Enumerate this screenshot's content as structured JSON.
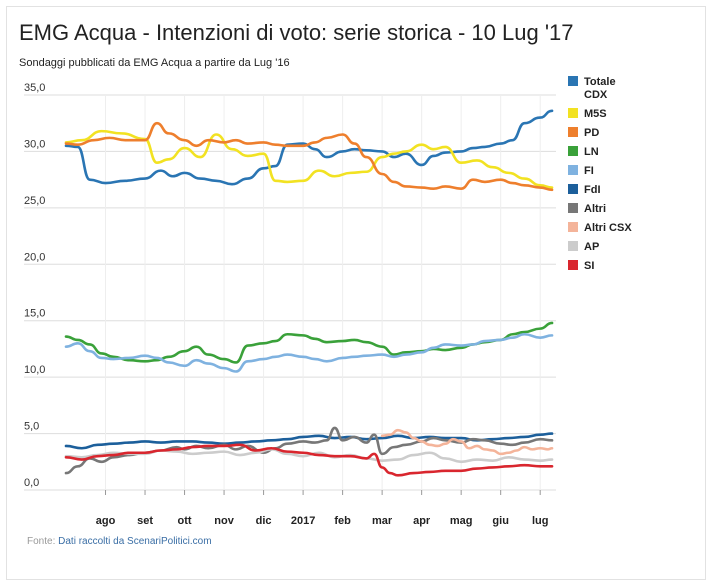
{
  "chart_data": {
    "type": "line",
    "title": "EMG Acqua - Intenzioni di voto: serie storica - 10 Lug '17",
    "subtitle": "Sondaggi pubblicati da EMG Acqua a partire da Lug '16",
    "source_prefix": "Fonte: ",
    "source_link": "Dati raccolti da ScenariPolitici.com",
    "ylim": [
      0,
      35
    ],
    "yticks": [
      "0,0",
      "5,0",
      "10,0",
      "15,0",
      "20,0",
      "25,0",
      "30,0",
      "35,0"
    ],
    "ytick_values": [
      0,
      5,
      10,
      15,
      20,
      25,
      30,
      35
    ],
    "xlim": [
      0,
      12.4
    ],
    "x_ticks": [
      {
        "label": "ago",
        "x": 1.0
      },
      {
        "label": "set",
        "x": 2.0
      },
      {
        "label": "ott",
        "x": 3.0
      },
      {
        "label": "nov",
        "x": 4.0
      },
      {
        "label": "dic",
        "x": 5.0
      },
      {
        "label": "2017",
        "x": 6.0
      },
      {
        "label": "feb",
        "x": 7.0
      },
      {
        "label": "mar",
        "x": 8.0
      },
      {
        "label": "apr",
        "x": 9.0
      },
      {
        "label": "mag",
        "x": 10.0
      },
      {
        "label": "giu",
        "x": 11.0
      },
      {
        "label": "lug",
        "x": 12.0
      }
    ],
    "grid": true,
    "legend_position": "right",
    "series": [
      {
        "name": "Totale CDX",
        "color": "#2a75b3",
        "x": [
          0,
          0.3,
          0.6,
          1.0,
          1.5,
          2.0,
          2.4,
          2.7,
          3.0,
          3.4,
          3.8,
          4.2,
          4.6,
          5.0,
          5.3,
          5.6,
          6.0,
          6.3,
          6.6,
          7.0,
          7.3,
          7.6,
          8.0,
          8.3,
          8.6,
          9.0,
          9.3,
          9.6,
          10.0,
          10.3,
          10.6,
          11.0,
          11.3,
          11.6,
          12.0,
          12.3
        ],
        "values": [
          30.5,
          30.4,
          27.5,
          27.2,
          27.4,
          27.6,
          28.3,
          27.8,
          28.1,
          27.6,
          27.4,
          27.1,
          27.6,
          28.5,
          28.7,
          30.6,
          30.7,
          30.2,
          29.5,
          30.0,
          30.2,
          30.1,
          30.0,
          29.5,
          29.8,
          28.8,
          29.6,
          29.9,
          30.0,
          30.3,
          30.4,
          30.7,
          31.0,
          32.5,
          33.0,
          33.6
        ]
      },
      {
        "name": "M5S",
        "color": "#f2e222",
        "x": [
          0,
          0.4,
          0.9,
          1.4,
          2.0,
          2.3,
          2.6,
          3.0,
          3.4,
          3.8,
          4.2,
          4.6,
          5.0,
          5.3,
          5.6,
          6.0,
          6.4,
          6.8,
          7.2,
          7.6,
          8.0,
          8.3,
          8.6,
          9.0,
          9.3,
          9.6,
          10.0,
          10.4,
          10.8,
          11.2,
          11.6,
          12.0,
          12.3
        ],
        "values": [
          30.8,
          31.0,
          31.8,
          31.6,
          31.1,
          29.0,
          29.3,
          30.3,
          29.5,
          31.5,
          30.2,
          29.6,
          29.8,
          27.4,
          27.3,
          27.4,
          28.3,
          27.8,
          28.1,
          28.2,
          29.5,
          29.8,
          30.0,
          30.6,
          30.2,
          30.4,
          29.0,
          29.2,
          28.6,
          28.1,
          27.6,
          27.0,
          26.8
        ]
      },
      {
        "name": "PD",
        "color": "#ee7f2d",
        "x": [
          0,
          0.3,
          0.7,
          1.1,
          1.5,
          2.0,
          2.3,
          2.6,
          3.0,
          3.3,
          3.6,
          4.0,
          4.3,
          4.6,
          5.0,
          5.3,
          5.6,
          6.0,
          6.3,
          6.6,
          7.0,
          7.3,
          7.6,
          8.0,
          8.3,
          8.6,
          9.0,
          9.3,
          9.6,
          10.0,
          10.3,
          10.6,
          11.0,
          11.3,
          11.6,
          12.0,
          12.3
        ],
        "values": [
          30.7,
          30.6,
          31.0,
          31.2,
          31.0,
          31.0,
          32.5,
          31.6,
          31.0,
          30.5,
          31.0,
          30.8,
          31.0,
          30.7,
          30.8,
          30.6,
          30.5,
          30.5,
          30.8,
          31.2,
          31.5,
          30.7,
          29.5,
          28.0,
          27.3,
          26.9,
          26.8,
          26.7,
          26.9,
          26.7,
          27.5,
          27.3,
          27.5,
          27.2,
          27.0,
          26.8,
          26.6
        ]
      },
      {
        "name": "LN",
        "color": "#3aa13a",
        "x": [
          0,
          0.3,
          0.6,
          0.9,
          1.2,
          1.6,
          2.0,
          2.3,
          2.6,
          3.0,
          3.3,
          3.6,
          4.0,
          4.3,
          4.6,
          5.0,
          5.3,
          5.6,
          6.0,
          6.3,
          6.6,
          7.0,
          7.3,
          7.6,
          8.0,
          8.3,
          8.6,
          9.0,
          9.3,
          9.6,
          10.0,
          10.3,
          10.6,
          11.0,
          11.3,
          11.6,
          12.0,
          12.3
        ],
        "values": [
          13.6,
          13.3,
          12.9,
          12.1,
          11.8,
          11.5,
          11.4,
          11.5,
          11.8,
          12.3,
          12.7,
          12.0,
          11.6,
          11.3,
          12.8,
          13.0,
          13.2,
          13.8,
          13.7,
          13.4,
          13.1,
          13.2,
          13.3,
          13.1,
          12.7,
          12.0,
          12.2,
          12.3,
          12.5,
          12.4,
          12.6,
          12.9,
          13.1,
          13.3,
          13.8,
          14.0,
          14.3,
          14.8
        ]
      },
      {
        "name": "FI",
        "color": "#7fb2e0",
        "x": [
          0,
          0.3,
          0.6,
          0.9,
          1.2,
          1.6,
          2.0,
          2.3,
          2.6,
          3.0,
          3.3,
          3.6,
          4.0,
          4.3,
          4.6,
          5.0,
          5.3,
          5.6,
          6.0,
          6.3,
          6.6,
          7.0,
          7.3,
          7.6,
          8.0,
          8.3,
          8.6,
          9.0,
          9.3,
          9.6,
          10.0,
          10.3,
          10.6,
          11.0,
          11.3,
          11.6,
          12.0,
          12.3
        ],
        "values": [
          12.7,
          13.0,
          12.3,
          11.7,
          11.6,
          11.7,
          11.9,
          11.7,
          11.3,
          11.0,
          11.5,
          11.2,
          10.8,
          10.5,
          11.4,
          11.6,
          11.8,
          12.0,
          11.8,
          11.6,
          11.4,
          11.7,
          11.8,
          11.9,
          12.0,
          11.8,
          12.0,
          12.2,
          12.6,
          12.9,
          12.8,
          12.9,
          13.2,
          13.3,
          13.5,
          13.8,
          13.5,
          13.7
        ]
      },
      {
        "name": "FdI",
        "color": "#1c5f9b",
        "x": [
          0,
          0.4,
          0.8,
          1.2,
          1.6,
          2.0,
          2.4,
          2.8,
          3.2,
          3.6,
          4.0,
          4.4,
          4.8,
          5.2,
          5.6,
          6.0,
          6.4,
          6.8,
          7.2,
          7.6,
          8.0,
          8.4,
          8.8,
          9.2,
          9.6,
          10.0,
          10.4,
          10.8,
          11.2,
          11.6,
          12.0,
          12.3
        ],
        "values": [
          3.9,
          3.7,
          4.0,
          4.1,
          4.2,
          4.3,
          4.2,
          4.3,
          4.3,
          4.2,
          4.1,
          4.2,
          4.3,
          4.4,
          4.5,
          4.7,
          4.8,
          4.6,
          4.7,
          4.5,
          4.6,
          4.8,
          4.6,
          4.7,
          4.6,
          4.6,
          4.4,
          4.5,
          4.6,
          4.7,
          4.9,
          5.0
        ]
      },
      {
        "name": "Altri",
        "color": "#777777",
        "x": [
          0,
          0.3,
          0.6,
          0.9,
          1.2,
          1.6,
          2.0,
          2.4,
          2.8,
          3.0,
          3.3,
          3.6,
          4.0,
          4.3,
          4.6,
          5.0,
          5.3,
          5.6,
          6.0,
          6.3,
          6.6,
          6.8,
          7.0,
          7.3,
          7.6,
          7.8,
          8.0,
          8.3,
          8.6,
          9.0,
          9.3,
          9.6,
          10.0,
          10.3,
          10.6,
          11.0,
          11.3,
          11.6,
          12.0,
          12.3
        ],
        "values": [
          1.5,
          2.1,
          2.8,
          2.5,
          2.9,
          3.1,
          3.3,
          3.5,
          3.8,
          3.6,
          3.9,
          3.7,
          4.0,
          3.6,
          3.9,
          3.3,
          3.7,
          4.1,
          4.3,
          4.2,
          4.4,
          5.5,
          4.4,
          4.7,
          4.2,
          4.9,
          3.2,
          3.8,
          4.0,
          4.3,
          4.6,
          4.4,
          4.2,
          4.5,
          4.4,
          4.1,
          4.0,
          4.2,
          4.5,
          4.4
        ]
      },
      {
        "name": "Altri CSX",
        "color": "#f4b49a",
        "x": [
          8.0,
          8.2,
          8.4,
          8.6,
          8.8,
          9.0,
          9.2,
          9.4,
          9.6,
          9.8,
          10.0,
          10.2,
          10.4,
          10.6,
          10.8,
          11.0,
          11.2,
          11.4,
          11.6,
          11.8,
          12.0,
          12.2,
          12.3
        ],
        "values": [
          4.8,
          4.9,
          5.3,
          5.1,
          4.6,
          4.3,
          4.0,
          3.9,
          4.1,
          4.5,
          4.3,
          3.7,
          3.9,
          3.6,
          3.5,
          3.2,
          3.3,
          3.5,
          3.8,
          3.6,
          3.7,
          3.6,
          3.7
        ]
      },
      {
        "name": "AP",
        "color": "#cccccc",
        "x": [
          0,
          0.4,
          0.8,
          1.2,
          1.6,
          2.0,
          2.4,
          2.8,
          3.2,
          3.6,
          4.0,
          4.4,
          4.8,
          5.2,
          5.6,
          6.0,
          6.4,
          6.8,
          7.2,
          7.6,
          8.0,
          8.4,
          8.8,
          9.2,
          9.6,
          10.0,
          10.4,
          10.8,
          11.2,
          11.6,
          12.0,
          12.3
        ],
        "values": [
          3.0,
          2.9,
          3.1,
          3.3,
          3.2,
          3.2,
          3.5,
          3.4,
          3.2,
          3.3,
          3.4,
          3.1,
          3.3,
          3.6,
          3.2,
          3.0,
          3.3,
          2.9,
          3.1,
          2.8,
          2.6,
          2.7,
          3.1,
          3.3,
          2.8,
          2.5,
          2.7,
          2.6,
          2.9,
          2.7,
          2.6,
          2.7
        ]
      },
      {
        "name": "SI",
        "color": "#d9262e",
        "x": [
          0,
          0.4,
          0.8,
          1.2,
          1.6,
          2.0,
          2.4,
          2.8,
          3.2,
          3.6,
          4.0,
          4.4,
          4.8,
          5.2,
          5.6,
          6.0,
          6.4,
          6.8,
          7.2,
          7.6,
          7.8,
          8.0,
          8.2,
          8.4,
          8.8,
          9.2,
          9.6,
          10.0,
          10.4,
          10.8,
          11.2,
          11.6,
          12.0,
          12.3
        ],
        "values": [
          2.9,
          2.7,
          3.0,
          3.1,
          3.3,
          3.3,
          3.5,
          3.6,
          3.8,
          3.9,
          3.9,
          4.0,
          3.5,
          3.7,
          3.4,
          3.3,
          3.1,
          3.0,
          3.0,
          2.8,
          3.2,
          2.0,
          1.5,
          1.3,
          1.5,
          1.6,
          1.7,
          1.7,
          1.9,
          2.0,
          2.1,
          2.2,
          2.1,
          2.1
        ]
      }
    ]
  }
}
